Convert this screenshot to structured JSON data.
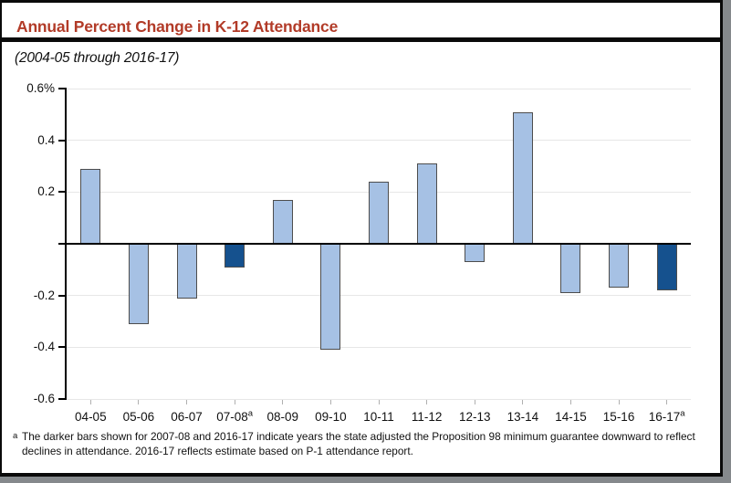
{
  "header": {
    "title": "Annual Percent Change in K-12 Attendance",
    "title_color": "#b23b28",
    "subtitle": "(2004-05 through 2016-17)"
  },
  "chart_data": {
    "type": "bar",
    "title": "Annual Percent Change in K-12 Attendance",
    "subtitle": "(2004-05 through 2016-17)",
    "unit": "percent",
    "categories": [
      "04-05",
      "05-06",
      "06-07",
      "07-08",
      "08-09",
      "09-10",
      "10-11",
      "11-12",
      "12-13",
      "13-14",
      "14-15",
      "15-16",
      "16-17"
    ],
    "values": [
      0.29,
      -0.31,
      -0.21,
      -0.09,
      0.17,
      -0.41,
      0.24,
      0.31,
      -0.07,
      0.51,
      -0.19,
      -0.17,
      -0.18
    ],
    "dark_indices": [
      3,
      12
    ],
    "superscript_indices": [
      3,
      12
    ],
    "superscript_char": "a",
    "ylim": [
      -0.6,
      0.6
    ],
    "yticks": [
      {
        "value": 0.6,
        "label": "0.6%"
      },
      {
        "value": 0.4,
        "label": "0.4"
      },
      {
        "value": 0.2,
        "label": "0.2"
      },
      {
        "value": -0.2,
        "label": "-0.2"
      },
      {
        "value": -0.4,
        "label": "-0.4"
      },
      {
        "value": -0.6,
        "label": "-0.6"
      }
    ],
    "grid": true,
    "legend": "none",
    "colors": {
      "bar_light": "#a6c1e4",
      "bar_dark": "#15518e",
      "bar_border": "#4d4d4d",
      "gridline": "#e7e7e7",
      "zero_line": "#000000",
      "axis": "#000000",
      "x_tick": "#b0b0b0"
    }
  },
  "footnote": {
    "marker": "a",
    "lines": [
      "The darker bars shown for 2007-08 and 2016-17 indicate years the state adjusted the Proposition 98 minimum guarantee downward to reflect",
      "declines in attendance. 2016-17 reflects estimate based on P-1 attendance report."
    ]
  }
}
